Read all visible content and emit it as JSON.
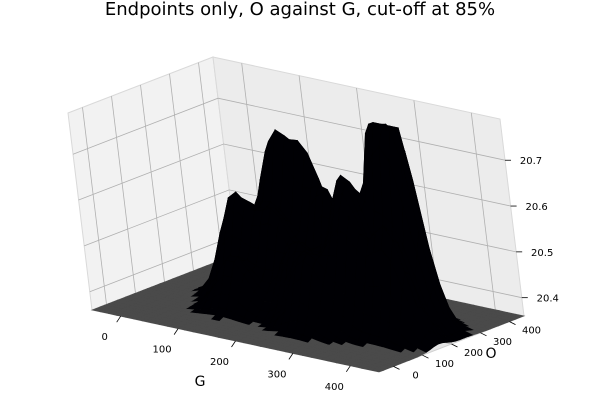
{
  "chart_data": {
    "type": "surface3d",
    "title": "Endpoints only, O against G, cut-off at 85%",
    "xlabel": "G",
    "ylabel": "O",
    "zlabel": "",
    "xlim": [
      -50,
      450
    ],
    "ylim": [
      -50,
      450
    ],
    "zlim": [
      20.36,
      20.79
    ],
    "x_ticks": [
      0,
      100,
      200,
      300,
      400
    ],
    "y_ticks": [
      0,
      100,
      200,
      300,
      400
    ],
    "z_ticks": [
      20.4,
      20.5,
      20.6,
      20.7
    ],
    "x_tick_labels": [
      "0",
      "100",
      "200",
      "300",
      "400"
    ],
    "y_tick_labels": [
      "0",
      "100",
      "200",
      "300",
      "400"
    ],
    "z_tick_labels": [
      "20.4",
      "20.5",
      "20.6",
      "20.7"
    ],
    "floor_value": 20.36,
    "colormap": [
      "#000004",
      "#320a5e",
      "#781c6d",
      "#ba3655",
      "#ed6925",
      "#fbb61a",
      "#fcffa4"
    ],
    "floor_color": "#4a4a4a",
    "grid": true,
    "peaks": [
      {
        "g": 130,
        "o": 270,
        "z": 20.66
      },
      {
        "g": 180,
        "o": 290,
        "z": 20.62
      },
      {
        "g": 90,
        "o": 200,
        "z": 20.58
      },
      {
        "g": 160,
        "o": 200,
        "z": 20.55
      },
      {
        "g": 230,
        "o": 250,
        "z": 20.6
      },
      {
        "g": 220,
        "o": 150,
        "z": 20.52
      },
      {
        "g": 290,
        "o": 200,
        "z": 20.64
      },
      {
        "g": 330,
        "o": 270,
        "z": 20.78
      },
      {
        "g": 360,
        "o": 250,
        "z": 20.72
      },
      {
        "g": 310,
        "o": 150,
        "z": 20.55
      },
      {
        "g": 260,
        "o": 100,
        "z": 20.5
      },
      {
        "g": 120,
        "o": 120,
        "z": 20.48
      },
      {
        "g": 380,
        "o": 160,
        "z": 20.6
      },
      {
        "g": 190,
        "o": 360,
        "z": 20.56
      }
    ]
  }
}
